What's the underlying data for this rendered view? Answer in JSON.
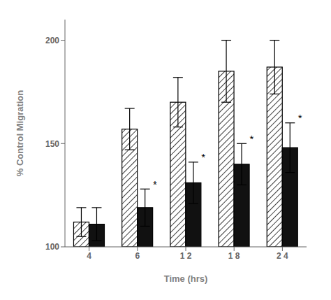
{
  "chart_data": {
    "type": "bar",
    "categories": [
      "4",
      "6",
      "1 2",
      "1 8",
      "2 4"
    ],
    "series": [
      {
        "color": "white",
        "values": [
          112,
          157,
          170,
          185,
          187
        ],
        "errors": [
          7,
          10,
          12,
          15,
          13
        ]
      },
      {
        "color": "#111111",
        "values": [
          111,
          119,
          131,
          140,
          148
        ],
        "errors": [
          8,
          9,
          10,
          10,
          12
        ]
      }
    ],
    "xlabel": "Time  (hrs)",
    "ylabel": "% Control Migration",
    "ylim": [
      100,
      210
    ],
    "yticks": [
      100,
      150,
      200
    ],
    "grid": false,
    "annotations": [
      {
        "text": "*",
        "category": "6"
      },
      {
        "text": "*",
        "category": "1 2"
      },
      {
        "text": "*",
        "category": "1 8"
      },
      {
        "text": "*",
        "category": "2 4"
      }
    ]
  }
}
